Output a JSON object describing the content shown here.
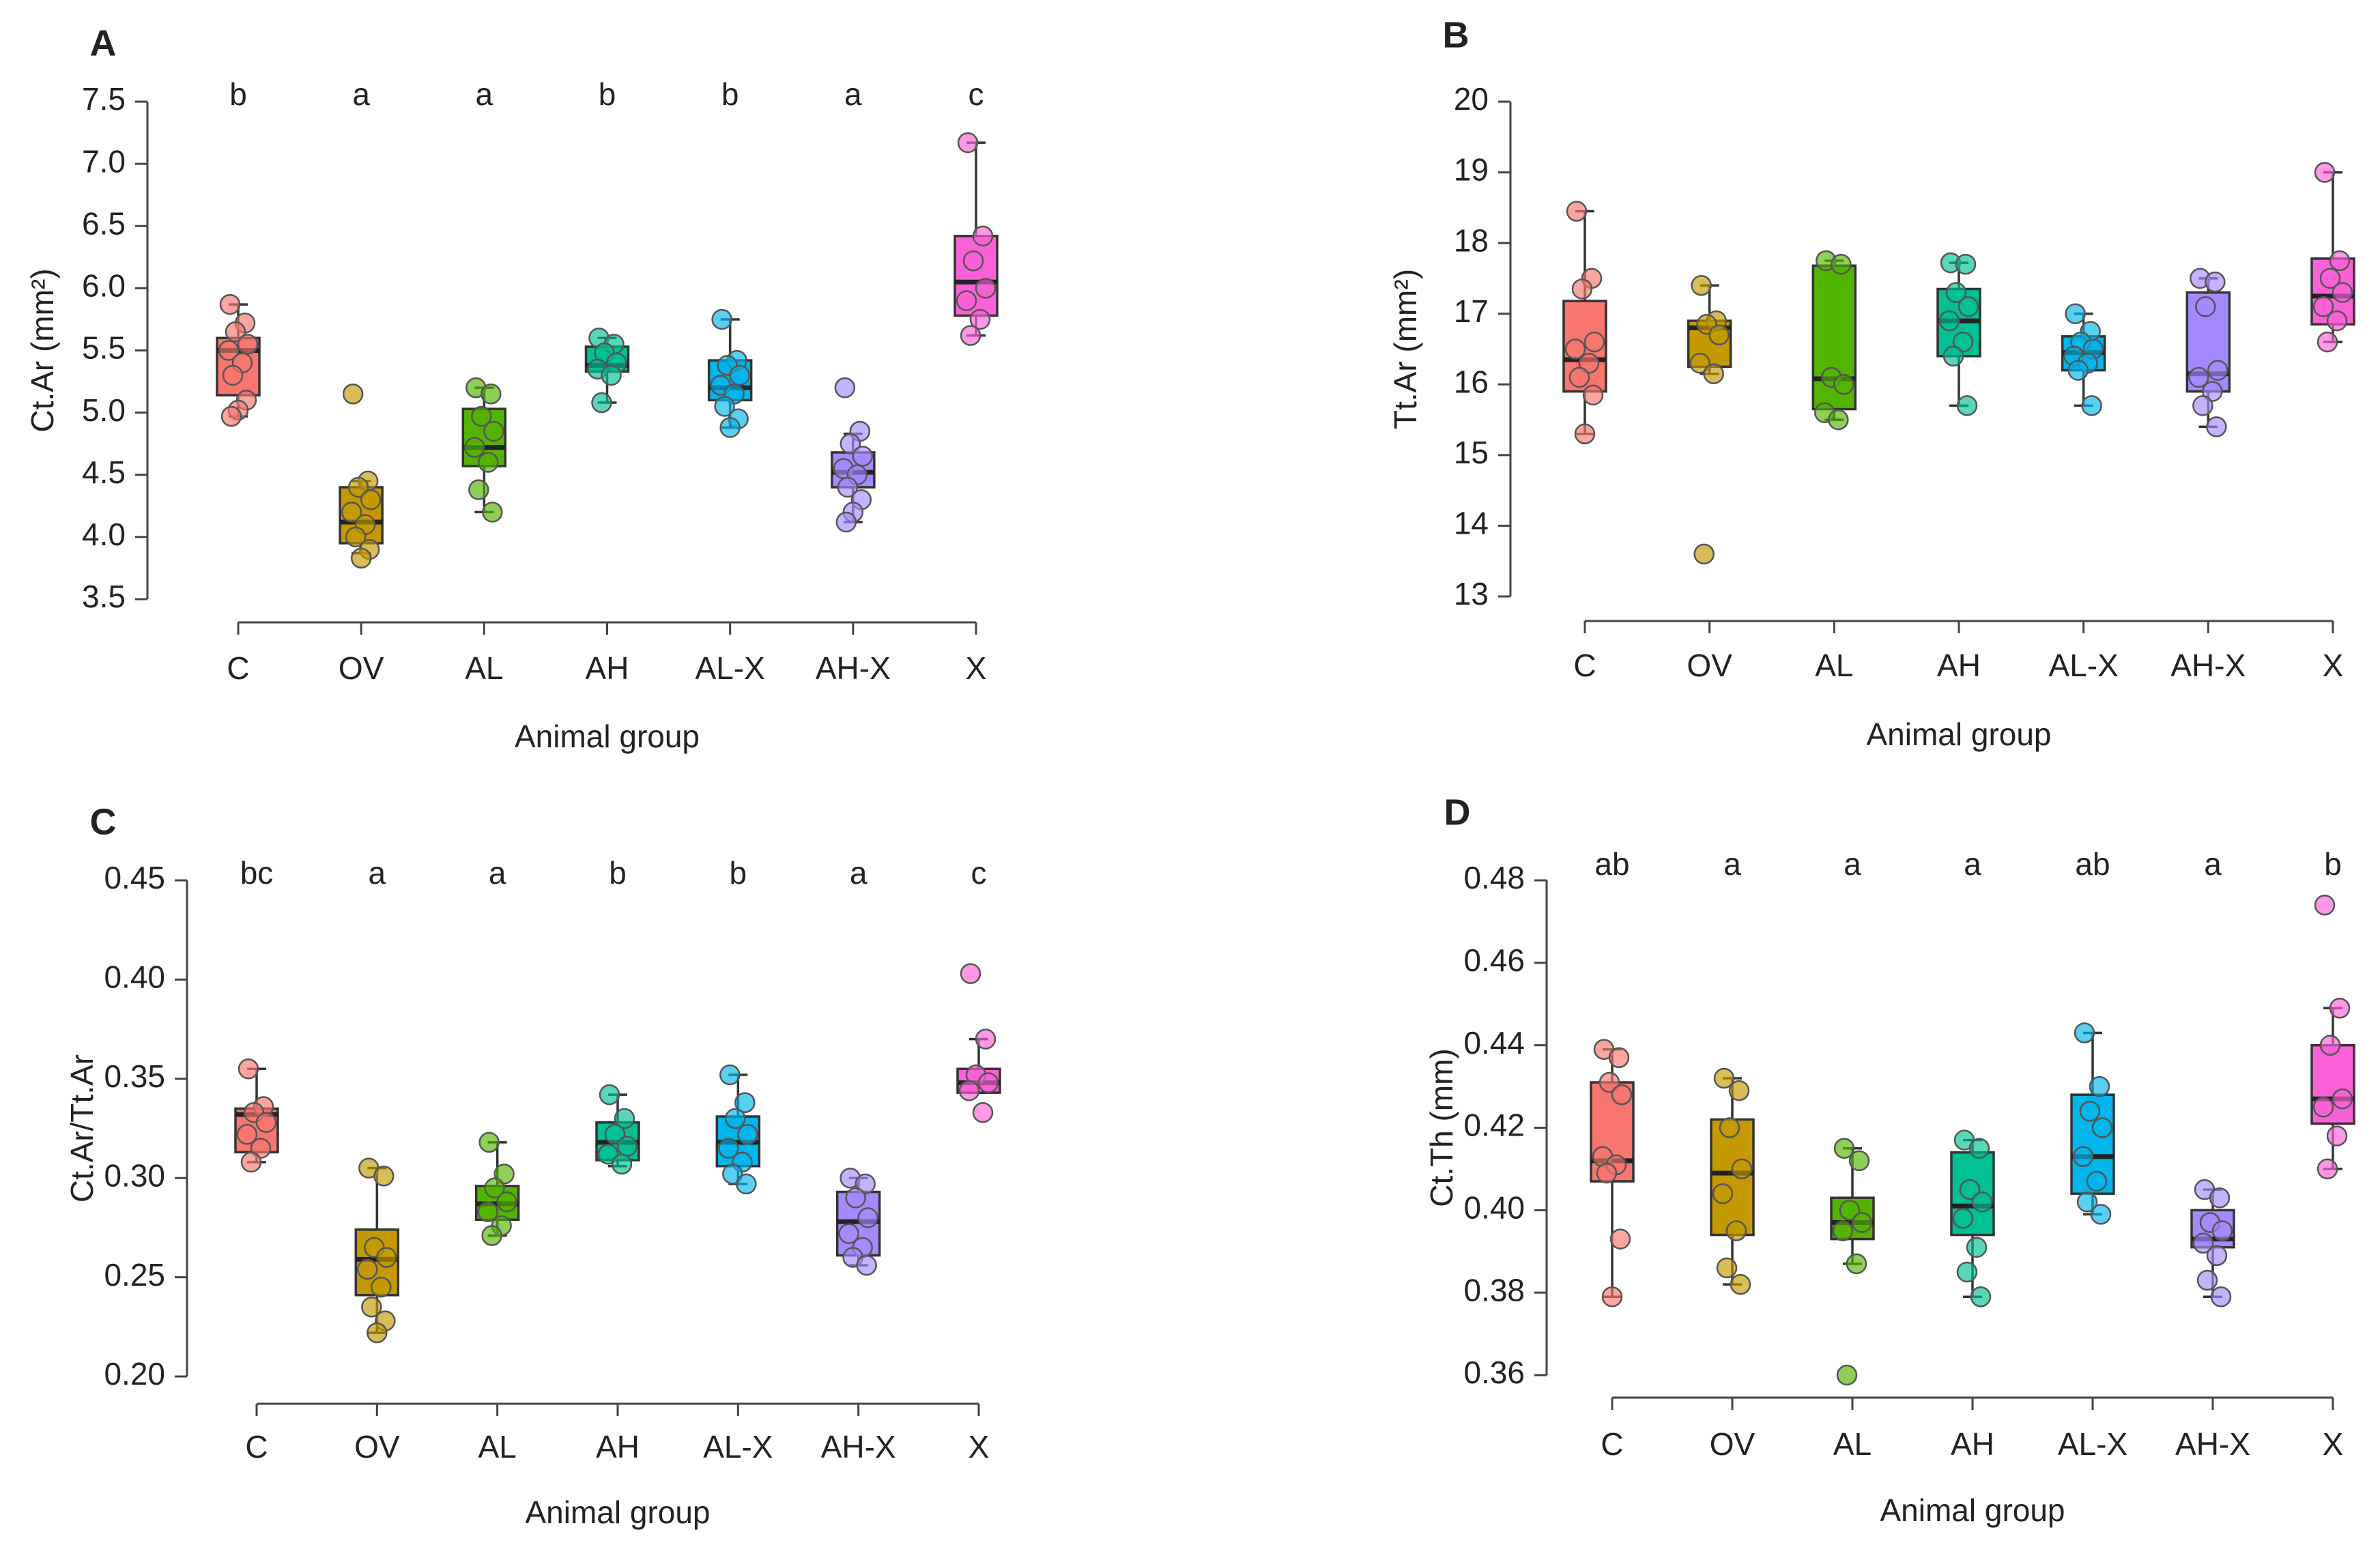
{
  "chart_data": [
    {
      "type": "box",
      "panel": "A",
      "ylabel": "Ct.Ar (mm²)",
      "xlabel": "Animal group",
      "categories": [
        "C",
        "OV",
        "AL",
        "AH",
        "AL-X",
        "AH-X",
        "X"
      ],
      "letters": [
        "b",
        "a",
        "a",
        "b",
        "b",
        "a",
        "c"
      ],
      "ylim": [
        3.5,
        7.5
      ],
      "yticks": [
        3.5,
        {
          "value": 4,
          "label": "4.0"
        },
        4.5,
        {
          "value": 5,
          "label": "5.0"
        },
        5.5,
        {
          "value": 6,
          "label": "6.0"
        },
        6.5,
        {
          "value": 7,
          "label": "7.0"
        },
        7.5
      ],
      "boxes": [
        {
          "color": "#F8766D",
          "whislo": 4.97,
          "q1": 5.14,
          "med": 5.5,
          "q3": 5.6,
          "whishi": 5.87,
          "points": [
            5.87,
            5.72,
            5.65,
            5.55,
            5.5,
            5.4,
            5.3,
            5.1,
            5.02,
            4.97
          ]
        },
        {
          "color": "#C49A00",
          "whislo": 3.87,
          "q1": 3.95,
          "med": 4.12,
          "q3": 4.4,
          "whishi": 4.45,
          "points": [
            5.15,
            4.45,
            4.4,
            4.3,
            4.2,
            4.1,
            4.0,
            3.9,
            3.83
          ]
        },
        {
          "color": "#53B400",
          "whislo": 4.2,
          "q1": 4.57,
          "med": 4.72,
          "q3": 5.03,
          "whishi": 5.2,
          "points": [
            5.2,
            5.15,
            4.97,
            4.85,
            4.72,
            4.6,
            4.38,
            4.2
          ]
        },
        {
          "color": "#00C094",
          "whislo": 5.08,
          "q1": 5.33,
          "med": 5.38,
          "q3": 5.53,
          "whishi": 5.6,
          "points": [
            5.6,
            5.55,
            5.48,
            5.4,
            5.35,
            5.3,
            5.08
          ]
        },
        {
          "color": "#00B6EB",
          "whislo": 4.88,
          "q1": 5.1,
          "med": 5.2,
          "q3": 5.42,
          "whishi": 5.75,
          "points": [
            5.75,
            5.42,
            5.38,
            5.3,
            5.22,
            5.15,
            5.05,
            4.95,
            4.88
          ]
        },
        {
          "color": "#A58AFF",
          "whislo": 4.12,
          "q1": 4.4,
          "med": 4.52,
          "q3": 4.68,
          "whishi": 4.83,
          "points": [
            5.2,
            4.85,
            4.75,
            4.65,
            4.55,
            4.5,
            4.4,
            4.3,
            4.2,
            4.12
          ]
        },
        {
          "color": "#FB61D7",
          "whislo": 5.62,
          "q1": 5.78,
          "med": 6.05,
          "q3": 6.42,
          "whishi": 7.17,
          "points": [
            7.17,
            6.42,
            6.22,
            6.0,
            5.9,
            5.75,
            5.62
          ]
        }
      ]
    },
    {
      "type": "box",
      "panel": "B",
      "ylabel": "Tt.Ar (mm²)",
      "xlabel": "Animal group",
      "categories": [
        "C",
        "OV",
        "AL",
        "AH",
        "AL-X",
        "AH-X",
        "X"
      ],
      "ylim": [
        13,
        20
      ],
      "yticks": [
        13,
        14,
        15,
        16,
        17,
        18,
        19,
        20
      ],
      "boxes": [
        {
          "color": "#F8766D",
          "whislo": 15.3,
          "q1": 15.9,
          "med": 16.35,
          "q3": 17.18,
          "whishi": 18.45,
          "points": [
            18.45,
            17.5,
            17.35,
            16.6,
            16.5,
            16.3,
            16.1,
            15.85,
            15.3
          ]
        },
        {
          "color": "#C49A00",
          "whislo": 16.15,
          "q1": 16.25,
          "med": 16.8,
          "q3": 16.9,
          "whishi": 17.4,
          "points": [
            17.4,
            16.9,
            16.85,
            16.7,
            16.3,
            16.15,
            13.6
          ]
        },
        {
          "color": "#53B400",
          "whislo": 15.5,
          "q1": 15.65,
          "med": 16.08,
          "q3": 17.68,
          "whishi": 17.75,
          "points": [
            17.75,
            17.7,
            16.1,
            16.0,
            15.6,
            15.5
          ]
        },
        {
          "color": "#00C094",
          "whislo": 15.7,
          "q1": 16.4,
          "med": 16.9,
          "q3": 17.35,
          "whishi": 17.72,
          "points": [
            17.72,
            17.7,
            17.3,
            17.1,
            16.9,
            16.6,
            16.4,
            15.7
          ]
        },
        {
          "color": "#00B6EB",
          "whislo": 15.7,
          "q1": 16.2,
          "med": 16.45,
          "q3": 16.68,
          "whishi": 17.0,
          "points": [
            17.0,
            16.75,
            16.6,
            16.5,
            16.4,
            16.3,
            16.2,
            15.7
          ]
        },
        {
          "color": "#A58AFF",
          "whislo": 15.4,
          "q1": 15.9,
          "med": 16.15,
          "q3": 17.3,
          "whishi": 17.5,
          "points": [
            17.5,
            17.45,
            17.1,
            16.2,
            16.1,
            15.9,
            15.7,
            15.4
          ]
        },
        {
          "color": "#FB61D7",
          "whislo": 16.6,
          "q1": 16.85,
          "med": 17.25,
          "q3": 17.78,
          "whishi": 19.0,
          "points": [
            19.0,
            17.75,
            17.5,
            17.3,
            17.1,
            16.9,
            16.6
          ]
        }
      ]
    },
    {
      "type": "box",
      "panel": "C",
      "ylabel": "Ct.Ar/Tt.Ar",
      "xlabel": "Animal group",
      "categories": [
        "C",
        "OV",
        "AL",
        "AH",
        "AL-X",
        "AH-X",
        "X"
      ],
      "letters": [
        "bc",
        "a",
        "a",
        "b",
        "b",
        "a",
        "c"
      ],
      "ylim": [
        0.2,
        0.45
      ],
      "yticks": [
        {
          "value": 0.2,
          "label": "0.20"
        },
        0.25,
        {
          "value": 0.3,
          "label": "0.30"
        },
        0.35,
        {
          "value": 0.4,
          "label": "0.40"
        },
        0.45
      ],
      "boxes": [
        {
          "color": "#F8766D",
          "whislo": 0.308,
          "q1": 0.313,
          "med": 0.332,
          "q3": 0.335,
          "whishi": 0.355,
          "points": [
            0.355,
            0.336,
            0.333,
            0.328,
            0.322,
            0.315,
            0.308
          ]
        },
        {
          "color": "#C49A00",
          "whislo": 0.222,
          "q1": 0.241,
          "med": 0.259,
          "q3": 0.274,
          "whishi": 0.305,
          "points": [
            0.305,
            0.301,
            0.265,
            0.26,
            0.254,
            0.245,
            0.235,
            0.228,
            0.222
          ]
        },
        {
          "color": "#53B400",
          "whislo": 0.271,
          "q1": 0.279,
          "med": 0.287,
          "q3": 0.296,
          "whishi": 0.318,
          "points": [
            0.318,
            0.302,
            0.295,
            0.288,
            0.283,
            0.276,
            0.271
          ]
        },
        {
          "color": "#00C094",
          "whislo": 0.306,
          "q1": 0.309,
          "med": 0.318,
          "q3": 0.328,
          "whishi": 0.342,
          "points": [
            0.342,
            0.33,
            0.322,
            0.316,
            0.312,
            0.307
          ]
        },
        {
          "color": "#00B6EB",
          "whislo": 0.297,
          "q1": 0.306,
          "med": 0.318,
          "q3": 0.331,
          "whishi": 0.352,
          "points": [
            0.352,
            0.338,
            0.33,
            0.322,
            0.315,
            0.308,
            0.302,
            0.297
          ]
        },
        {
          "color": "#A58AFF",
          "whislo": 0.256,
          "q1": 0.261,
          "med": 0.278,
          "q3": 0.293,
          "whishi": 0.3,
          "points": [
            0.3,
            0.297,
            0.29,
            0.28,
            0.272,
            0.265,
            0.26,
            0.256
          ]
        },
        {
          "color": "#FB61D7",
          "whislo": 0.343,
          "q1": 0.343,
          "med": 0.348,
          "q3": 0.355,
          "whishi": 0.37,
          "points": [
            0.403,
            0.37,
            0.352,
            0.348,
            0.344,
            0.333
          ]
        }
      ]
    },
    {
      "type": "box",
      "panel": "D",
      "ylabel": "Ct.Th (mm)",
      "xlabel": "Animal group",
      "categories": [
        "C",
        "OV",
        "AL",
        "AH",
        "AL-X",
        "AH-X",
        "X"
      ],
      "letters": [
        "ab",
        "a",
        "a",
        "a",
        "ab",
        "a",
        "b"
      ],
      "ylim": [
        0.36,
        0.48
      ],
      "yticks": [
        0.36,
        0.38,
        {
          "value": 0.4,
          "label": "0.40"
        },
        0.42,
        0.44,
        0.46,
        0.48
      ],
      "boxes": [
        {
          "color": "#F8766D",
          "whislo": 0.379,
          "q1": 0.407,
          "med": 0.412,
          "q3": 0.431,
          "whishi": 0.439,
          "points": [
            0.439,
            0.437,
            0.431,
            0.428,
            0.413,
            0.411,
            0.409,
            0.393,
            0.379
          ]
        },
        {
          "color": "#C49A00",
          "whislo": 0.382,
          "q1": 0.394,
          "med": 0.409,
          "q3": 0.422,
          "whishi": 0.432,
          "points": [
            0.432,
            0.429,
            0.42,
            0.41,
            0.404,
            0.395,
            0.386,
            0.382
          ]
        },
        {
          "color": "#53B400",
          "whislo": 0.387,
          "q1": 0.393,
          "med": 0.397,
          "q3": 0.403,
          "whishi": 0.415,
          "points": [
            0.415,
            0.412,
            0.4,
            0.397,
            0.395,
            0.387,
            0.36
          ]
        },
        {
          "color": "#00C094",
          "whislo": 0.379,
          "q1": 0.394,
          "med": 0.401,
          "q3": 0.414,
          "whishi": 0.417,
          "points": [
            0.417,
            0.415,
            0.405,
            0.402,
            0.398,
            0.391,
            0.385,
            0.379
          ]
        },
        {
          "color": "#00B6EB",
          "whislo": 0.399,
          "q1": 0.404,
          "med": 0.413,
          "q3": 0.428,
          "whishi": 0.443,
          "points": [
            0.443,
            0.43,
            0.424,
            0.42,
            0.413,
            0.407,
            0.402,
            0.399
          ]
        },
        {
          "color": "#A58AFF",
          "whislo": 0.379,
          "q1": 0.391,
          "med": 0.393,
          "q3": 0.4,
          "whishi": 0.405,
          "points": [
            0.405,
            0.403,
            0.397,
            0.395,
            0.392,
            0.389,
            0.383,
            0.379
          ]
        },
        {
          "color": "#FB61D7",
          "whislo": 0.41,
          "q1": 0.421,
          "med": 0.427,
          "q3": 0.44,
          "whishi": 0.449,
          "points": [
            0.474,
            0.449,
            0.44,
            0.427,
            0.425,
            0.418,
            0.41
          ]
        }
      ]
    }
  ]
}
